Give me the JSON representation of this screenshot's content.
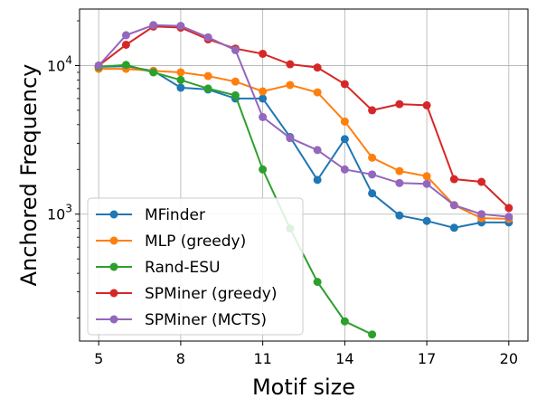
{
  "chart_data": {
    "type": "line",
    "xlabel": "Motif size",
    "ylabel": "Anchored Frequency",
    "xlim": [
      4.3,
      20.7
    ],
    "ylim": [
      140,
      24000
    ],
    "yscale": "log",
    "grid": true,
    "legend_position": "lower-left",
    "x_ticks": [
      {
        "value": 5,
        "label": "5"
      },
      {
        "value": 8,
        "label": "8"
      },
      {
        "value": 11,
        "label": "11"
      },
      {
        "value": 14,
        "label": "14"
      },
      {
        "value": 17,
        "label": "17"
      },
      {
        "value": 20,
        "label": "20"
      }
    ],
    "y_ticks": [
      {
        "value": 1000,
        "base": "10",
        "exp": "3"
      },
      {
        "value": 10000,
        "base": "10",
        "exp": "4"
      }
    ],
    "series": [
      {
        "name": "MFinder",
        "color": "#1f77b4",
        "x": [
          5,
          6,
          7,
          8,
          9,
          10,
          11,
          12,
          13,
          14,
          15,
          16,
          17,
          18,
          19,
          20
        ],
        "y": [
          9800,
          9900,
          9200,
          7100,
          6900,
          6000,
          6000,
          3300,
          1700,
          3200,
          1380,
          980,
          900,
          810,
          880,
          880
        ]
      },
      {
        "name": "MLP (greedy)",
        "color": "#ff7f0e",
        "x": [
          5,
          6,
          7,
          8,
          9,
          10,
          11,
          12,
          13,
          14,
          15,
          16,
          17,
          18,
          19,
          20
        ],
        "y": [
          9500,
          9500,
          9200,
          9000,
          8500,
          7800,
          6700,
          7400,
          6600,
          4200,
          2400,
          1950,
          1800,
          1150,
          940,
          930
        ]
      },
      {
        "name": "Rand-ESU",
        "color": "#2ca02c",
        "x": [
          5,
          6,
          7,
          8,
          9,
          10,
          11,
          12,
          13,
          14,
          15
        ],
        "y": [
          9800,
          10100,
          9000,
          8000,
          7000,
          6300,
          2000,
          800,
          350,
          190,
          155
        ]
      },
      {
        "name": "SPMiner (greedy)",
        "color": "#d62728",
        "x": [
          5,
          6,
          7,
          8,
          9,
          10,
          11,
          12,
          13,
          14,
          15,
          16,
          17,
          18,
          19,
          20
        ],
        "y": [
          10000,
          13800,
          18300,
          18000,
          15000,
          13000,
          12000,
          10200,
          9700,
          7500,
          5000,
          5500,
          5400,
          1720,
          1650,
          1100
        ]
      },
      {
        "name": "SPMiner (MCTS)",
        "color": "#9467bd",
        "x": [
          5,
          6,
          7,
          8,
          9,
          10,
          11,
          12,
          13,
          14,
          15,
          16,
          17,
          18,
          19,
          20
        ],
        "y": [
          10000,
          16000,
          18700,
          18500,
          15500,
          12700,
          4500,
          3250,
          2700,
          2000,
          1850,
          1620,
          1600,
          1150,
          1000,
          960
        ]
      }
    ]
  }
}
